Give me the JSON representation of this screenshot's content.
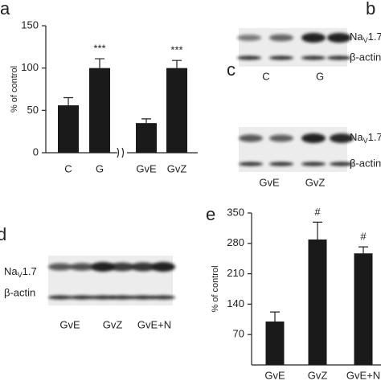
{
  "chart_data": [
    {
      "type": "bar",
      "panel": "a",
      "y_label": "% of control",
      "color": "#1a1a1a",
      "categories": [
        "C",
        "G",
        "GvE",
        "GvZ"
      ],
      "values": [
        56,
        100,
        35,
        100
      ],
      "errors": [
        9,
        11,
        5,
        9
      ],
      "annotations": [
        null,
        "***",
        null,
        "***"
      ],
      "ylim": [
        0,
        150
      ],
      "yticks": [
        0,
        50,
        100,
        150
      ]
    },
    {
      "type": "bar",
      "panel": "e",
      "y_label": "% of control",
      "color": "#1a1a1a",
      "categories": [
        "GvE",
        "GvZ",
        "GvE+N"
      ],
      "values": [
        100,
        289,
        257
      ],
      "errors": [
        22,
        40,
        15
      ],
      "annotations": [
        null,
        "#",
        "#"
      ],
      "ylim": [
        0,
        350
      ],
      "yticks": [
        70,
        140,
        210,
        280,
        350
      ]
    }
  ],
  "blots": [
    {
      "panel": "b",
      "protein": {
        "name": "Na",
        "sub": "V",
        "rest": "1.7"
      },
      "control": "β-actin",
      "lanes": [
        "C",
        "G"
      ]
    },
    {
      "panel": "c",
      "protein": {
        "name": "Na",
        "sub": "V",
        "rest": "1.7"
      },
      "control": "β-actin",
      "lanes": [
        "GvE",
        "GvZ"
      ]
    },
    {
      "panel": "d",
      "protein": {
        "name": "Na",
        "sub": "V",
        "rest": "1.7"
      },
      "control": "β-actin",
      "lanes": [
        "GvE",
        "GvZ",
        "GvE+N"
      ]
    }
  ]
}
